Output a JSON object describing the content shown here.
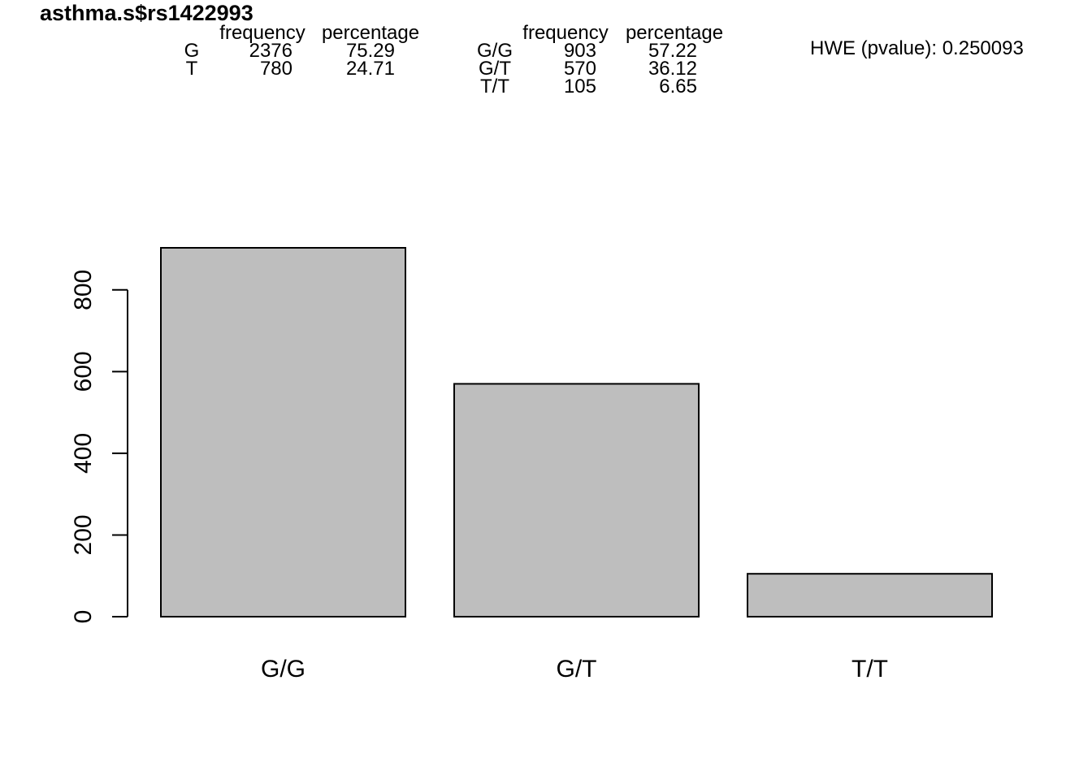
{
  "title": "asthma.s$rs1422993",
  "allele_table": {
    "headers": [
      "frequency",
      "percentage"
    ],
    "rows": [
      {
        "label": "G",
        "frequency": "2376",
        "percentage": "75.29"
      },
      {
        "label": "T",
        "frequency": "780",
        "percentage": "24.71"
      }
    ]
  },
  "genotype_table": {
    "headers": [
      "frequency",
      "percentage"
    ],
    "rows": [
      {
        "label": "G/G",
        "frequency": "903",
        "percentage": "57.22"
      },
      {
        "label": "G/T",
        "frequency": "570",
        "percentage": "36.12"
      },
      {
        "label": "T/T",
        "frequency": "105",
        "percentage": "6.65"
      }
    ]
  },
  "hwe": {
    "text": "HWE (pvalue): 0.250093"
  },
  "chart_data": {
    "type": "bar",
    "categories": [
      "G/G",
      "G/T",
      "T/T"
    ],
    "values": [
      903,
      570,
      105
    ],
    "title": "asthma.s$rs1422993",
    "xlabel": "",
    "ylabel": "",
    "ylim": [
      0,
      903
    ],
    "yticks": [
      0,
      200,
      400,
      600,
      800
    ],
    "bar_color": "#bebebe",
    "edge_color": "#000000",
    "grid": false,
    "legend": "none"
  }
}
